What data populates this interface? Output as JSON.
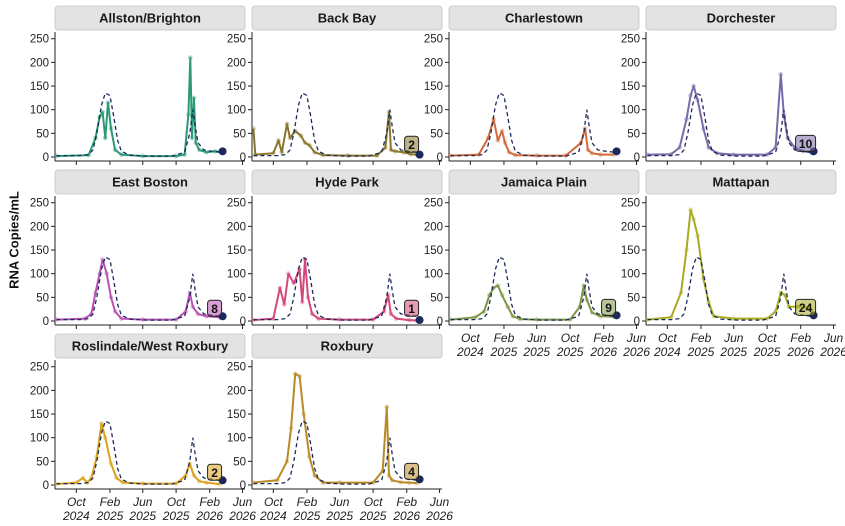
{
  "chart_data": {
    "type": "line",
    "ylabel": "RNA Copies/mL",
    "ylim": [
      0,
      260
    ],
    "y_ticks": [
      "0",
      "50",
      "100",
      "150",
      "200",
      "250"
    ],
    "x_ticks": [
      {
        "month": "Oct",
        "year": "2024"
      },
      {
        "month": "Feb",
        "year": "2025"
      },
      {
        "month": "Jun",
        "year": "2025"
      },
      {
        "month": "Oct",
        "year": "2025"
      },
      {
        "month": "Feb",
        "year": "2026"
      },
      {
        "month": "Jun",
        "year": "2026"
      }
    ],
    "x_tick_dates": [
      "2024-10-01",
      "2025-02-01",
      "2025-06-01",
      "2025-10-01",
      "2026-02-01",
      "2026-06-01"
    ],
    "xlim": [
      "2024-07-15",
      "2026-06-10"
    ],
    "reference_series": {
      "style": "dashed",
      "color": "#1b2a5b",
      "points": [
        [
          "2024-07-20",
          3
        ],
        [
          "2024-10-15",
          3
        ],
        [
          "2024-11-15",
          5
        ],
        [
          "2024-12-01",
          15
        ],
        [
          "2024-12-15",
          50
        ],
        [
          "2025-01-01",
          110
        ],
        [
          "2025-01-15",
          135
        ],
        [
          "2025-02-01",
          130
        ],
        [
          "2025-02-15",
          85
        ],
        [
          "2025-03-01",
          35
        ],
        [
          "2025-03-15",
          12
        ],
        [
          "2025-04-15",
          4
        ],
        [
          "2025-06-15",
          2
        ],
        [
          "2025-09-15",
          2
        ],
        [
          "2025-11-01",
          10
        ],
        [
          "2025-11-20",
          50
        ],
        [
          "2025-12-01",
          100
        ],
        [
          "2025-12-10",
          65
        ],
        [
          "2025-12-20",
          30
        ],
        [
          "2026-01-10",
          15
        ],
        [
          "2026-02-10",
          12
        ],
        [
          "2026-03-15",
          10
        ]
      ]
    },
    "panels": [
      {
        "name": "Allston/Brighton",
        "color": "#2a9a74",
        "badge": "",
        "last_point": [
          "2026-03-20",
          12
        ],
        "series": [
          [
            "2024-07-20",
            2
          ],
          [
            "2024-11-15",
            4
          ],
          [
            "2024-12-10",
            40
          ],
          [
            "2024-12-25",
            85
          ],
          [
            "2025-01-05",
            95
          ],
          [
            "2025-01-15",
            40
          ],
          [
            "2025-01-25",
            115
          ],
          [
            "2025-02-05",
            60
          ],
          [
            "2025-02-20",
            15
          ],
          [
            "2025-03-15",
            5
          ],
          [
            "2025-06-01",
            2
          ],
          [
            "2025-10-01",
            2
          ],
          [
            "2025-11-01",
            5
          ],
          [
            "2025-11-15",
            90
          ],
          [
            "2025-11-22",
            210
          ],
          [
            "2025-11-28",
            40
          ],
          [
            "2025-12-05",
            125
          ],
          [
            "2025-12-12",
            30
          ],
          [
            "2025-12-25",
            15
          ],
          [
            "2026-01-20",
            10
          ],
          [
            "2026-02-20",
            12
          ],
          [
            "2026-03-15",
            10
          ]
        ]
      },
      {
        "name": "Back Bay",
        "color": "#8a7529",
        "badge": "2",
        "last_point": [
          "2026-03-20",
          5
        ],
        "series": [
          [
            "2024-07-20",
            60
          ],
          [
            "2024-07-27",
            5
          ],
          [
            "2024-10-01",
            8
          ],
          [
            "2024-10-20",
            35
          ],
          [
            "2024-11-01",
            10
          ],
          [
            "2024-11-20",
            70
          ],
          [
            "2024-12-01",
            40
          ],
          [
            "2024-12-20",
            55
          ],
          [
            "2025-01-10",
            45
          ],
          [
            "2025-01-25",
            30
          ],
          [
            "2025-02-10",
            25
          ],
          [
            "2025-03-01",
            10
          ],
          [
            "2025-04-01",
            4
          ],
          [
            "2025-07-01",
            3
          ],
          [
            "2025-10-15",
            3
          ],
          [
            "2025-11-15",
            20
          ],
          [
            "2025-11-28",
            95
          ],
          [
            "2025-12-05",
            15
          ],
          [
            "2025-12-20",
            12
          ],
          [
            "2026-01-20",
            10
          ],
          [
            "2026-02-15",
            6
          ],
          [
            "2026-03-10",
            5
          ]
        ]
      },
      {
        "name": "Charlestown",
        "color": "#d4693a",
        "badge": "",
        "last_point": [
          "2026-03-20",
          12
        ],
        "series": [
          [
            "2024-07-20",
            3
          ],
          [
            "2024-11-01",
            5
          ],
          [
            "2024-12-05",
            40
          ],
          [
            "2024-12-25",
            80
          ],
          [
            "2025-01-10",
            35
          ],
          [
            "2025-01-25",
            55
          ],
          [
            "2025-02-05",
            30
          ],
          [
            "2025-02-20",
            10
          ],
          [
            "2025-03-15",
            4
          ],
          [
            "2025-06-01",
            3
          ],
          [
            "2025-09-15",
            3
          ],
          [
            "2025-11-10",
            30
          ],
          [
            "2025-11-25",
            60
          ],
          [
            "2025-12-05",
            15
          ],
          [
            "2025-12-20",
            8
          ],
          [
            "2026-01-20",
            5
          ],
          [
            "2026-03-10",
            5
          ]
        ]
      },
      {
        "name": "Dorchester",
        "color": "#7b6aa8",
        "badge": "10",
        "last_point": [
          "2026-03-20",
          12
        ],
        "series": [
          [
            "2024-07-20",
            5
          ],
          [
            "2024-10-15",
            6
          ],
          [
            "2024-11-15",
            20
          ],
          [
            "2024-12-10",
            80
          ],
          [
            "2024-12-25",
            130
          ],
          [
            "2025-01-05",
            150
          ],
          [
            "2025-01-20",
            120
          ],
          [
            "2025-02-10",
            60
          ],
          [
            "2025-03-01",
            20
          ],
          [
            "2025-04-01",
            8
          ],
          [
            "2025-06-01",
            5
          ],
          [
            "2025-10-01",
            5
          ],
          [
            "2025-11-01",
            20
          ],
          [
            "2025-11-20",
            175
          ],
          [
            "2025-12-01",
            90
          ],
          [
            "2025-12-15",
            40
          ],
          [
            "2026-01-10",
            20
          ],
          [
            "2026-02-10",
            12
          ],
          [
            "2026-03-10",
            10
          ]
        ]
      },
      {
        "name": "East Boston",
        "color": "#b851b3",
        "badge": "8",
        "last_point": [
          "2026-03-20",
          10
        ],
        "series": [
          [
            "2024-07-20",
            3
          ],
          [
            "2024-11-01",
            5
          ],
          [
            "2024-11-25",
            15
          ],
          [
            "2024-12-10",
            60
          ],
          [
            "2024-12-25",
            100
          ],
          [
            "2025-01-05",
            130
          ],
          [
            "2025-01-20",
            100
          ],
          [
            "2025-02-05",
            50
          ],
          [
            "2025-02-20",
            20
          ],
          [
            "2025-03-15",
            5
          ],
          [
            "2025-06-01",
            3
          ],
          [
            "2025-10-01",
            3
          ],
          [
            "2025-11-05",
            20
          ],
          [
            "2025-11-20",
            60
          ],
          [
            "2025-12-01",
            30
          ],
          [
            "2025-12-20",
            15
          ],
          [
            "2026-01-20",
            10
          ],
          [
            "2026-03-10",
            8
          ]
        ]
      },
      {
        "name": "Hyde Park",
        "color": "#d4477a",
        "badge": "1",
        "last_point": [
          "2026-03-20",
          2
        ],
        "series": [
          [
            "2024-07-20",
            2
          ],
          [
            "2024-10-01",
            5
          ],
          [
            "2024-10-25",
            70
          ],
          [
            "2024-11-10",
            35
          ],
          [
            "2024-11-25",
            100
          ],
          [
            "2024-12-15",
            80
          ],
          [
            "2025-01-05",
            110
          ],
          [
            "2025-01-15",
            40
          ],
          [
            "2025-01-25",
            130
          ],
          [
            "2025-02-05",
            50
          ],
          [
            "2025-02-20",
            15
          ],
          [
            "2025-03-15",
            5
          ],
          [
            "2025-06-01",
            3
          ],
          [
            "2025-10-01",
            3
          ],
          [
            "2025-11-10",
            20
          ],
          [
            "2025-11-25",
            55
          ],
          [
            "2025-12-05",
            15
          ],
          [
            "2025-12-25",
            5
          ],
          [
            "2026-02-10",
            2
          ],
          [
            "2026-03-10",
            1
          ]
        ]
      },
      {
        "name": "Jamaica Plain",
        "color": "#7e9644",
        "badge": "9",
        "last_point": [
          "2026-03-20",
          12
        ],
        "series": [
          [
            "2024-07-20",
            3
          ],
          [
            "2024-10-20",
            8
          ],
          [
            "2024-11-20",
            20
          ],
          [
            "2024-12-10",
            55
          ],
          [
            "2024-12-25",
            70
          ],
          [
            "2025-01-10",
            75
          ],
          [
            "2025-01-25",
            55
          ],
          [
            "2025-02-15",
            30
          ],
          [
            "2025-03-05",
            10
          ],
          [
            "2025-04-01",
            4
          ],
          [
            "2025-06-01",
            3
          ],
          [
            "2025-10-01",
            3
          ],
          [
            "2025-11-05",
            30
          ],
          [
            "2025-11-20",
            75
          ],
          [
            "2025-12-01",
            45
          ],
          [
            "2025-12-20",
            18
          ],
          [
            "2026-01-20",
            10
          ],
          [
            "2026-03-10",
            9
          ]
        ]
      },
      {
        "name": "Mattapan",
        "color": "#a8ab22",
        "badge": "24",
        "last_point": [
          "2026-03-20",
          12
        ],
        "series": [
          [
            "2024-07-20",
            3
          ],
          [
            "2024-10-15",
            8
          ],
          [
            "2024-11-20",
            60
          ],
          [
            "2024-12-10",
            150
          ],
          [
            "2024-12-25",
            235
          ],
          [
            "2025-01-05",
            215
          ],
          [
            "2025-01-20",
            180
          ],
          [
            "2025-02-10",
            90
          ],
          [
            "2025-03-01",
            40
          ],
          [
            "2025-03-20",
            10
          ],
          [
            "2025-06-01",
            5
          ],
          [
            "2025-10-01",
            5
          ],
          [
            "2025-11-01",
            20
          ],
          [
            "2025-11-20",
            60
          ],
          [
            "2025-12-05",
            55
          ],
          [
            "2025-12-20",
            30
          ],
          [
            "2026-01-20",
            30
          ],
          [
            "2026-02-15",
            30
          ],
          [
            "2026-03-10",
            25
          ]
        ]
      },
      {
        "name": "Roslindale/West Roxbury",
        "color": "#d9a21a",
        "badge": "2",
        "last_point": [
          "2026-03-20",
          10
        ],
        "series": [
          [
            "2024-07-20",
            2
          ],
          [
            "2024-10-01",
            5
          ],
          [
            "2024-10-25",
            15
          ],
          [
            "2024-11-10",
            5
          ],
          [
            "2024-11-25",
            15
          ],
          [
            "2024-12-15",
            60
          ],
          [
            "2025-01-01",
            130
          ],
          [
            "2025-01-15",
            100
          ],
          [
            "2025-02-05",
            45
          ],
          [
            "2025-02-25",
            15
          ],
          [
            "2025-03-20",
            5
          ],
          [
            "2025-06-01",
            3
          ],
          [
            "2025-10-01",
            3
          ],
          [
            "2025-11-05",
            20
          ],
          [
            "2025-11-20",
            45
          ],
          [
            "2025-12-05",
            20
          ],
          [
            "2025-12-25",
            8
          ],
          [
            "2026-01-20",
            5
          ],
          [
            "2026-03-10",
            2
          ]
        ]
      },
      {
        "name": "Roxbury",
        "color": "#b98a26",
        "badge": "4",
        "last_point": [
          "2026-03-20",
          12
        ],
        "series": [
          [
            "2024-07-20",
            5
          ],
          [
            "2024-10-15",
            10
          ],
          [
            "2024-11-20",
            50
          ],
          [
            "2024-12-05",
            120
          ],
          [
            "2024-12-20",
            235
          ],
          [
            "2025-01-05",
            230
          ],
          [
            "2025-01-20",
            150
          ],
          [
            "2025-02-10",
            60
          ],
          [
            "2025-03-01",
            20
          ],
          [
            "2025-04-01",
            5
          ],
          [
            "2025-06-01",
            5
          ],
          [
            "2025-10-01",
            5
          ],
          [
            "2025-11-05",
            30
          ],
          [
            "2025-11-20",
            165
          ],
          [
            "2025-11-28",
            20
          ],
          [
            "2025-12-10",
            10
          ],
          [
            "2026-01-10",
            6
          ],
          [
            "2026-02-10",
            5
          ],
          [
            "2026-03-10",
            4
          ]
        ]
      }
    ]
  }
}
